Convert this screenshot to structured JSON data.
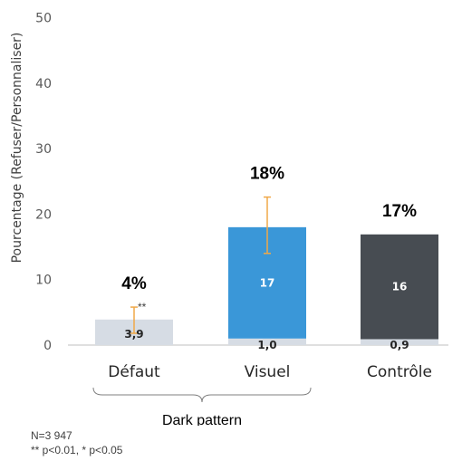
{
  "chart_data": {
    "type": "bar",
    "stacked": true,
    "ylabel": "Pourcentage (Refuser/Personnaliser)",
    "ylim": [
      0,
      50
    ],
    "yticks": [
      0,
      10,
      20,
      30,
      40,
      50
    ],
    "categories": [
      "Défaut",
      "Visuel",
      "Contrôle"
    ],
    "totals": [
      "4%",
      "18%",
      "17%"
    ],
    "series": [
      {
        "values": [
          3.9,
          1.0,
          0.9
        ],
        "labels": [
          "3,9",
          "1,0",
          "0,9"
        ]
      },
      {
        "values": [
          0,
          17,
          16
        ],
        "labels": [
          "",
          "17",
          "16"
        ]
      }
    ],
    "error_bars": [
      {
        "category": "Défaut",
        "low": 1.8,
        "high": 5.8
      },
      {
        "category": "Visuel",
        "low": 14.0,
        "high": 22.6
      }
    ],
    "significance": [
      "**",
      "",
      ""
    ],
    "group_label": "Dark pattern",
    "group_categories": [
      "Défaut",
      "Visuel"
    ],
    "colors": {
      "light": "#d6dce4",
      "blue": "#3a97d8",
      "dark": "#474c52",
      "error": "#f0a848",
      "axis": "#bfbfbf"
    }
  },
  "notes": {
    "n": "N=3 947",
    "significance": "** p<0.01, * p<0.05"
  }
}
